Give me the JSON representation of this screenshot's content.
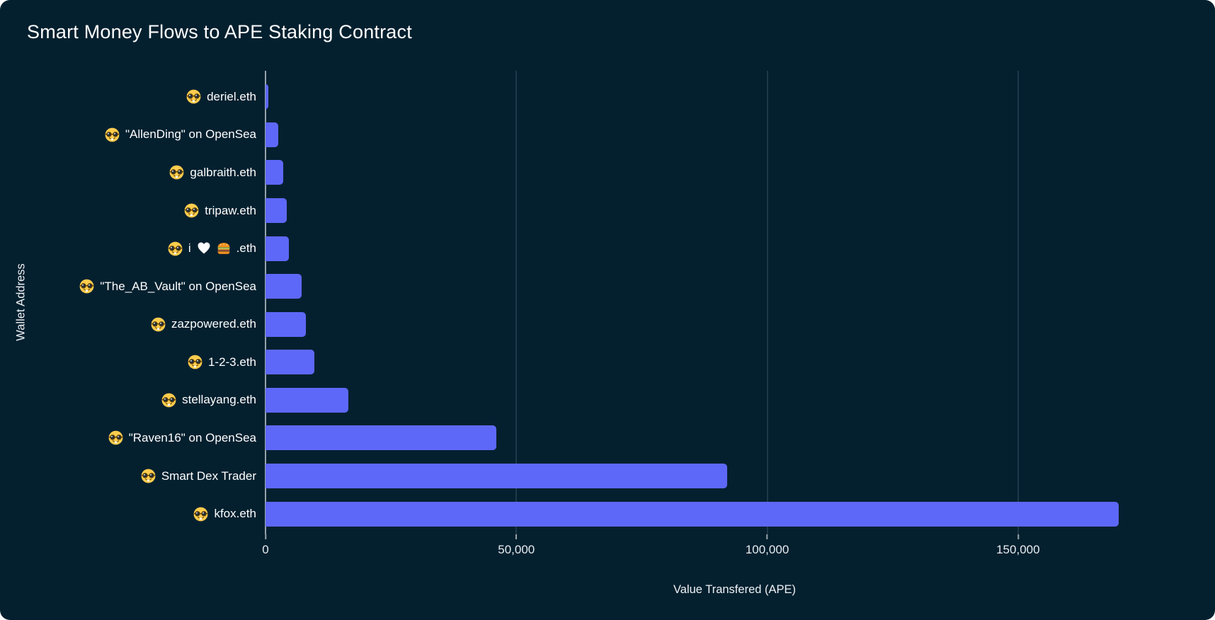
{
  "chart": {
    "colors": {
      "background": "#04202F",
      "bar": "#5E68F8",
      "gridline": "#1E3849",
      "axis_line": "#97A3AB",
      "title_text": "#FFFFFF",
      "tick_text": "#E7EDF1"
    }
  },
  "chart_data": {
    "type": "bar",
    "orientation": "horizontal",
    "title": "Smart Money Flows to APE Staking Contract",
    "xlabel": "Value Transfered (APE)",
    "ylabel": "Wallet Address",
    "grid": "vertical",
    "legend": "none",
    "xlim": [
      0,
      187000
    ],
    "categories": [
      "🤓 deriel.eth",
      "🤓 \"AllenDing\" on OpenSea",
      "🤓 galbraith.eth",
      "🤓 tripaw.eth",
      "🤓 i❤🍔.eth",
      "🤓 \"The_AB_Vault\" on OpenSea",
      "🤓 zazpowered.eth",
      "🤓 1-2-3.eth",
      "🤓 stellayang.eth",
      "🤓 \"Raven16\" on OpenSea",
      "🤓 Smart Dex Trader",
      "🤓 kfox.eth"
    ],
    "values": [
      500,
      2500,
      3500,
      4200,
      4600,
      7200,
      8000,
      9800,
      16500,
      46000,
      92000,
      170000
    ],
    "xticks": [
      {
        "value": 0,
        "label": "0"
      },
      {
        "value": 50000,
        "label": "50,000"
      },
      {
        "value": 100000,
        "label": "100,000"
      },
      {
        "value": 150000,
        "label": "150,000"
      }
    ]
  }
}
